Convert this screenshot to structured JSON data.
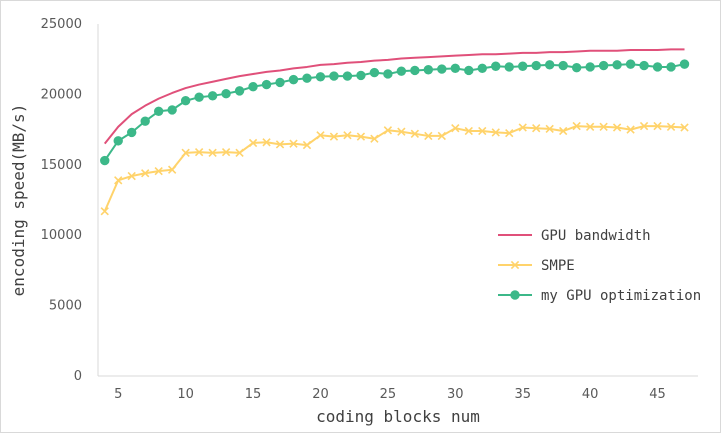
{
  "chart_data": {
    "type": "line",
    "xlabel": "coding blocks num",
    "ylabel": "encoding speed(MB/s)",
    "xlim": [
      3.5,
      48
    ],
    "ylim": [
      0,
      25000
    ],
    "x_ticks": [
      5,
      10,
      15,
      20,
      25,
      30,
      35,
      40,
      45
    ],
    "y_ticks": [
      0,
      5000,
      10000,
      15000,
      20000,
      25000
    ],
    "x": [
      4,
      5,
      6,
      7,
      8,
      9,
      10,
      11,
      12,
      13,
      14,
      15,
      16,
      17,
      18,
      19,
      20,
      21,
      22,
      23,
      24,
      25,
      26,
      27,
      28,
      29,
      30,
      31,
      32,
      33,
      34,
      35,
      36,
      37,
      38,
      39,
      40,
      41,
      42,
      43,
      44,
      45,
      46,
      47
    ],
    "legend_position": "right",
    "series": [
      {
        "name": "GPU bandwidth",
        "color": "#e0507a",
        "marker": "none",
        "values": [
          16500,
          17700,
          18600,
          19200,
          19700,
          20100,
          20450,
          20700,
          20900,
          21100,
          21300,
          21450,
          21600,
          21700,
          21850,
          21950,
          22100,
          22150,
          22250,
          22300,
          22400,
          22450,
          22550,
          22600,
          22650,
          22700,
          22750,
          22800,
          22850,
          22850,
          22900,
          22950,
          22950,
          23000,
          23000,
          23050,
          23100,
          23100,
          23100,
          23150,
          23150,
          23150,
          23200,
          23200
        ]
      },
      {
        "name": "SMPE",
        "color": "#ffd36b",
        "marker": "x",
        "values": [
          11700,
          13900,
          14200,
          14400,
          14550,
          14650,
          15850,
          15900,
          15850,
          15900,
          15850,
          16550,
          16600,
          16450,
          16500,
          16400,
          17100,
          17000,
          17100,
          17000,
          16850,
          17450,
          17350,
          17200,
          17050,
          17050,
          17600,
          17400,
          17400,
          17300,
          17250,
          17650,
          17600,
          17550,
          17400,
          17750,
          17700,
          17700,
          17650,
          17500,
          17750,
          17750,
          17700,
          17650
        ]
      },
      {
        "name": "my GPU optimization",
        "color": "#3cb889",
        "marker": "circle",
        "values": [
          15300,
          16700,
          17300,
          18100,
          18800,
          18900,
          19550,
          19800,
          19900,
          20050,
          20250,
          20550,
          20700,
          20850,
          21050,
          21150,
          21250,
          21300,
          21300,
          21350,
          21550,
          21450,
          21650,
          21700,
          21750,
          21800,
          21850,
          21700,
          21850,
          22000,
          21950,
          22000,
          22050,
          22100,
          22050,
          21900,
          21950,
          22050,
          22100,
          22150,
          22050,
          21950,
          21950,
          22150
        ]
      }
    ]
  }
}
